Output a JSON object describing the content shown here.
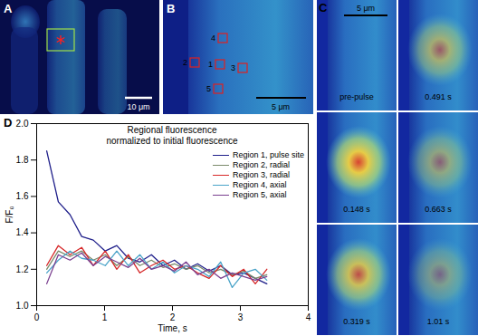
{
  "chart_data": {
    "type": "line",
    "panel": "D",
    "title": "Regional fluorescence",
    "subtitle": "normalized to initial fluorescence",
    "x_label": "Time, s",
    "y_label": "F/F₀",
    "xlim": [
      0,
      4
    ],
    "xticks": [
      0,
      1,
      2,
      3,
      4
    ],
    "ylim": [
      1,
      2
    ],
    "yticks": [
      {
        "value": 1,
        "label": "1.0"
      },
      1.2,
      1.4,
      1.6,
      1.8,
      {
        "value": 2,
        "label": "2.0"
      }
    ],
    "legend": "upper right",
    "x": [
      0.148,
      0.319,
      0.491,
      0.663,
      0.834,
      1.01,
      1.18,
      1.35,
      1.52,
      1.69,
      1.86,
      2.03,
      2.2,
      2.37,
      2.54,
      2.71,
      2.88,
      3.05,
      3.22,
      3.39
    ],
    "series": [
      {
        "name": "Region 1, pulse site",
        "color": "#1f1f8a",
        "values": [
          1.85,
          1.57,
          1.5,
          1.38,
          1.36,
          1.3,
          1.33,
          1.26,
          1.24,
          1.28,
          1.22,
          1.25,
          1.2,
          1.23,
          1.19,
          1.22,
          1.17,
          1.18,
          1.15,
          1.12
        ]
      },
      {
        "name": "Region 2, radial",
        "color": "#7a8a6a",
        "values": [
          1.2,
          1.3,
          1.27,
          1.3,
          1.25,
          1.28,
          1.22,
          1.27,
          1.22,
          1.25,
          1.21,
          1.23,
          1.2,
          1.22,
          1.18,
          1.2,
          1.17,
          1.19,
          1.15,
          1.17
        ]
      },
      {
        "name": "Region 3, radial",
        "color": "#d62728",
        "values": [
          1.22,
          1.33,
          1.28,
          1.32,
          1.22,
          1.3,
          1.2,
          1.28,
          1.18,
          1.22,
          1.25,
          1.2,
          1.22,
          1.18,
          1.15,
          1.22,
          1.16,
          1.2,
          1.12,
          1.2
        ]
      },
      {
        "name": "Region 4, axial",
        "color": "#4aa3c8",
        "values": [
          1.18,
          1.25,
          1.3,
          1.26,
          1.25,
          1.22,
          1.3,
          1.22,
          1.28,
          1.2,
          1.24,
          1.18,
          1.22,
          1.2,
          1.16,
          1.24,
          1.1,
          1.18,
          1.2,
          1.14
        ]
      },
      {
        "name": "Region 5, axial",
        "color": "#7a3f8f",
        "values": [
          1.12,
          1.28,
          1.25,
          1.29,
          1.22,
          1.27,
          1.24,
          1.21,
          1.26,
          1.2,
          1.22,
          1.19,
          1.24,
          1.17,
          1.2,
          1.15,
          1.18,
          1.16,
          1.14,
          1.16
        ]
      }
    ]
  },
  "image_panels": {
    "A": {
      "label": "A",
      "scale_bar": "10 μm"
    },
    "B": {
      "label": "B",
      "scale_bar": "5 μm",
      "regions": [
        "1",
        "2",
        "3",
        "4",
        "5"
      ]
    },
    "C": {
      "label": "C",
      "scale_bar": "5 μm",
      "frames": [
        "pre-pulse",
        "0.148 s",
        "0.319 s",
        "0.491 s",
        "0.663 s",
        "1.01 s"
      ]
    }
  }
}
